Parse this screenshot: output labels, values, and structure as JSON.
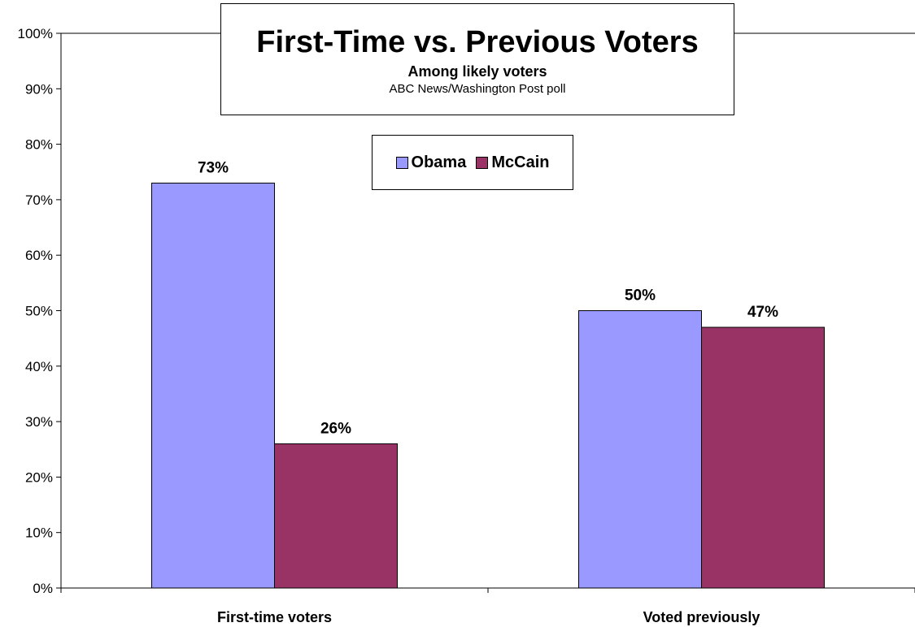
{
  "chart_data": {
    "type": "bar",
    "title": "First-Time vs. Previous Voters",
    "subtitle": "Among likely voters",
    "source": "ABC News/Washington Post poll",
    "categories": [
      "First-time voters",
      "Voted previously"
    ],
    "series": [
      {
        "name": "Obama",
        "color": "#9999ff",
        "values": [
          73,
          50
        ],
        "labels": [
          "73%",
          "50%"
        ]
      },
      {
        "name": "McCain",
        "color": "#993366",
        "values": [
          26,
          47
        ],
        "labels": [
          "26%",
          "47%"
        ]
      }
    ],
    "ylim": [
      0,
      100
    ],
    "yticks": [
      0,
      10,
      20,
      30,
      40,
      50,
      60,
      70,
      80,
      90,
      100
    ],
    "ytick_labels": [
      "0%",
      "10%",
      "20%",
      "30%",
      "40%",
      "50%",
      "60%",
      "70%",
      "80%",
      "90%",
      "100%"
    ],
    "xlabel": "",
    "ylabel": "",
    "grid": "top-line-only",
    "legend_position": "top-center"
  }
}
